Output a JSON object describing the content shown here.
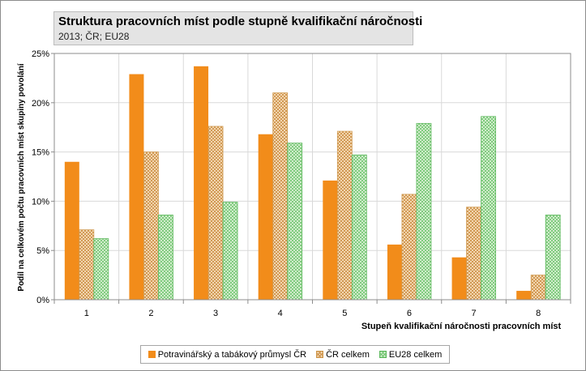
{
  "chart_data": {
    "type": "bar",
    "title": "Struktura pracovních míst podle stupně kvalifikační náročnosti",
    "subtitle": "2013; ČR; EU28",
    "xlabel": "Stupeň kvalifikační náročnosti pracovních míst",
    "ylabel": "Podíl na celkovém počtu pracovních míst skupiny povolání",
    "categories": [
      "1",
      "2",
      "3",
      "4",
      "5",
      "6",
      "7",
      "8"
    ],
    "yticks": [
      "0%",
      "5%",
      "10%",
      "15%",
      "20%",
      "25%"
    ],
    "ylim": [
      0,
      25
    ],
    "grid": true,
    "legend_position": "bottom",
    "series": [
      {
        "name": "Potravinářský a tabákový průmysl ČR",
        "color": "#f28c1a",
        "pattern": "solid",
        "values": [
          14.0,
          22.9,
          23.7,
          16.8,
          12.1,
          5.6,
          4.3,
          0.9
        ]
      },
      {
        "name": "ČR celkem",
        "color": "#d09a50",
        "pattern": "crosshatch",
        "values": [
          7.1,
          15.0,
          17.6,
          21.0,
          17.1,
          10.7,
          9.4,
          2.5
        ]
      },
      {
        "name": "EU28 celkem",
        "color": "#5cb85c",
        "pattern": "crosshatch",
        "values": [
          6.2,
          8.6,
          9.9,
          15.9,
          14.7,
          17.9,
          18.6,
          8.6
        ]
      }
    ]
  }
}
